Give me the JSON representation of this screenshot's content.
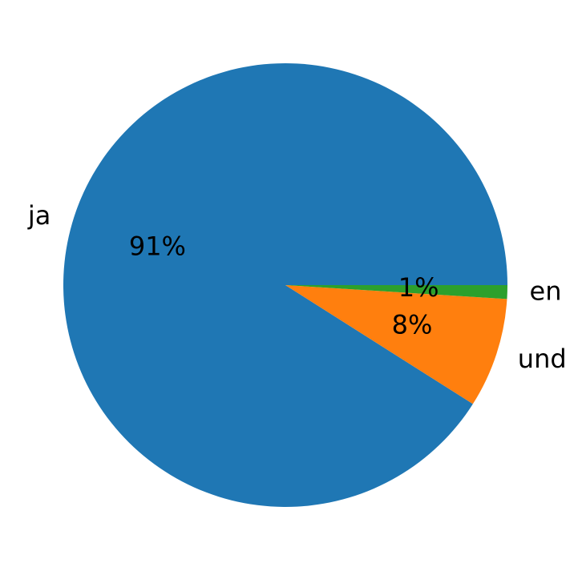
{
  "chart_data": {
    "type": "pie",
    "categories": [
      "ja",
      "und",
      "en"
    ],
    "values": [
      91,
      8,
      1
    ],
    "value_labels": [
      "91%",
      "8%",
      "1%"
    ],
    "colors": [
      "#1f77b4",
      "#ff7f0e",
      "#2ca02c"
    ]
  }
}
